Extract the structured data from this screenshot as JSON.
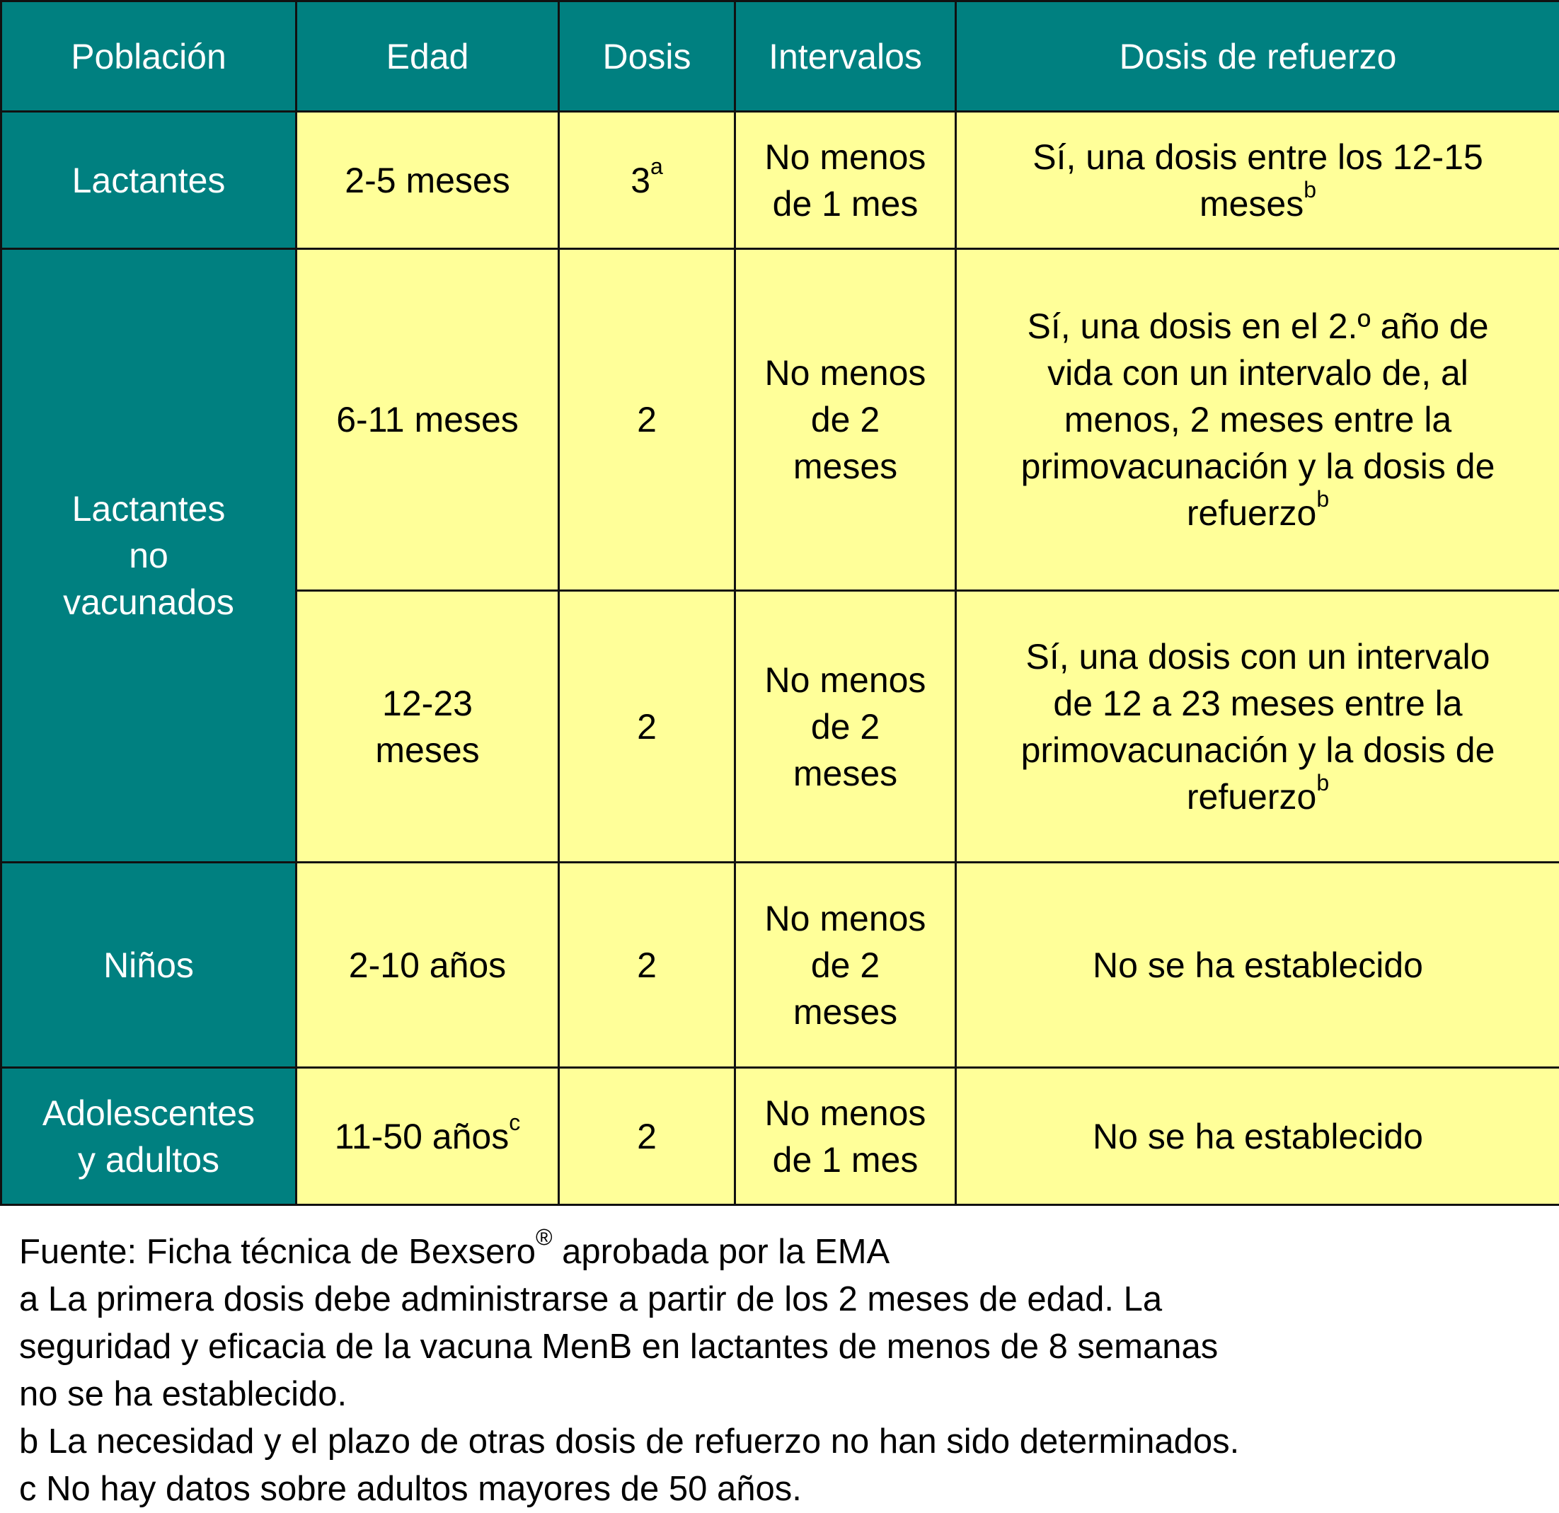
{
  "colors": {
    "header_bg": "#008080",
    "cell_bg": "#FFFF99",
    "border": "#111111"
  },
  "table": {
    "headers": [
      "Población",
      "Edad",
      "Dosis",
      "Intervalos",
      "Dosis de refuerzo"
    ],
    "rows": [
      {
        "poblacion": "Lactantes",
        "edad": "2-5 meses",
        "edad_sup": "",
        "dosis": "3",
        "dosis_sup": "a",
        "intervalos": "No menos\nde 1 mes",
        "refuerzo": "Sí, una dosis entre los 12-15\nmeses",
        "refuerzo_sup": "b"
      },
      {
        "poblacion": "Lactantes\nno\nvacunados",
        "edad": "6-11 meses",
        "edad_sup": "",
        "dosis": "2",
        "dosis_sup": "",
        "intervalos": "No menos\nde 2\nmeses",
        "refuerzo": "Sí, una dosis en el 2.º año de\nvida con un intervalo de, al\nmenos, 2 meses entre la\nprimovacunación y la dosis de\nrefuerzo",
        "refuerzo_sup": "b"
      },
      {
        "poblacion": "",
        "edad": "12-23\nmeses",
        "edad_sup": "",
        "dosis": "2",
        "dosis_sup": "",
        "intervalos": "No menos\nde 2\nmeses",
        "refuerzo": "Sí, una dosis con un intervalo\nde 12 a 23 meses entre la\nprimovacunación y la dosis de\nrefuerzo",
        "refuerzo_sup": "b"
      },
      {
        "poblacion": "Niños",
        "edad": "2-10 años",
        "edad_sup": "",
        "dosis": "2",
        "dosis_sup": "",
        "intervalos": "No menos\nde 2\nmeses",
        "refuerzo": "No se ha establecido",
        "refuerzo_sup": ""
      },
      {
        "poblacion": "Adolescentes\ny adultos",
        "edad": "11-50 años",
        "edad_sup": "c",
        "dosis": "2",
        "dosis_sup": "",
        "intervalos": "No menos\nde 1 mes",
        "refuerzo": "No se ha establecido",
        "refuerzo_sup": ""
      }
    ]
  },
  "notes": {
    "source": "Fuente: Ficha técnica de Bexsero",
    "source_sup": "®",
    "source_rest": " aprobada por la EMA",
    "a": "a La primera dosis debe administrarse a partir de los 2 meses de edad. La\nseguridad y eficacia de la vacuna MenB en lactantes de menos de 8 semanas\nno se ha establecido.",
    "b": "b La necesidad y el plazo de otras dosis de refuerzo no han sido determinados.",
    "c": "c No hay datos sobre adultos mayores de 50 años."
  }
}
